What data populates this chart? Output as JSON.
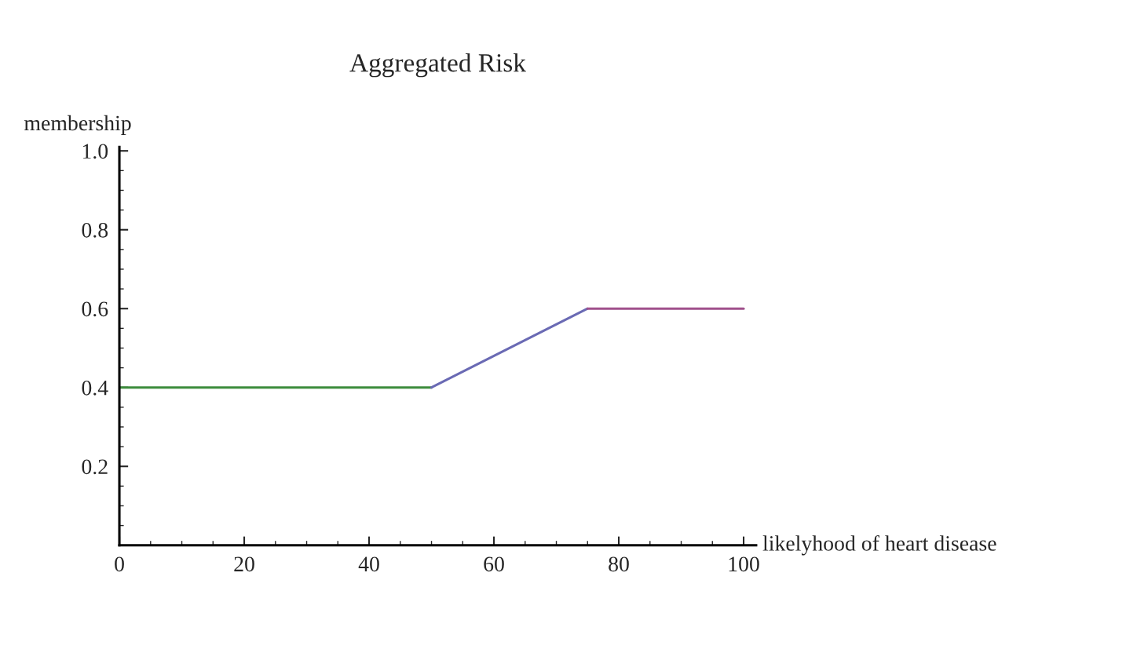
{
  "chart_data": {
    "type": "line",
    "title": "Aggregated Risk",
    "xlabel": "likelyhood of heart disease",
    "ylabel": "membership",
    "series": [
      {
        "color": "#3c8c3c",
        "x": [
          0,
          50
        ],
        "values": [
          0.4,
          0.4
        ]
      },
      {
        "color": "#6a6ab4",
        "x": [
          50,
          75
        ],
        "values": [
          0.4,
          0.6
        ]
      },
      {
        "color": "#a0508c",
        "x": [
          75,
          100
        ],
        "values": [
          0.6,
          0.6
        ]
      }
    ],
    "xlim": [
      0,
      102
    ],
    "ylim": [
      0,
      1.01
    ],
    "xticks": [
      0,
      20,
      40,
      60,
      80,
      100
    ],
    "yticks": [
      {
        "value": 0.2,
        "label": "0.2"
      },
      {
        "value": 0.4,
        "label": "0.4"
      },
      {
        "value": 0.6,
        "label": "0.6"
      },
      {
        "value": 0.8,
        "label": "0.8"
      },
      {
        "value": 1.0,
        "label": "1.0"
      }
    ],
    "grid": false,
    "legend": false,
    "marker": "none",
    "line_style": "solid"
  }
}
